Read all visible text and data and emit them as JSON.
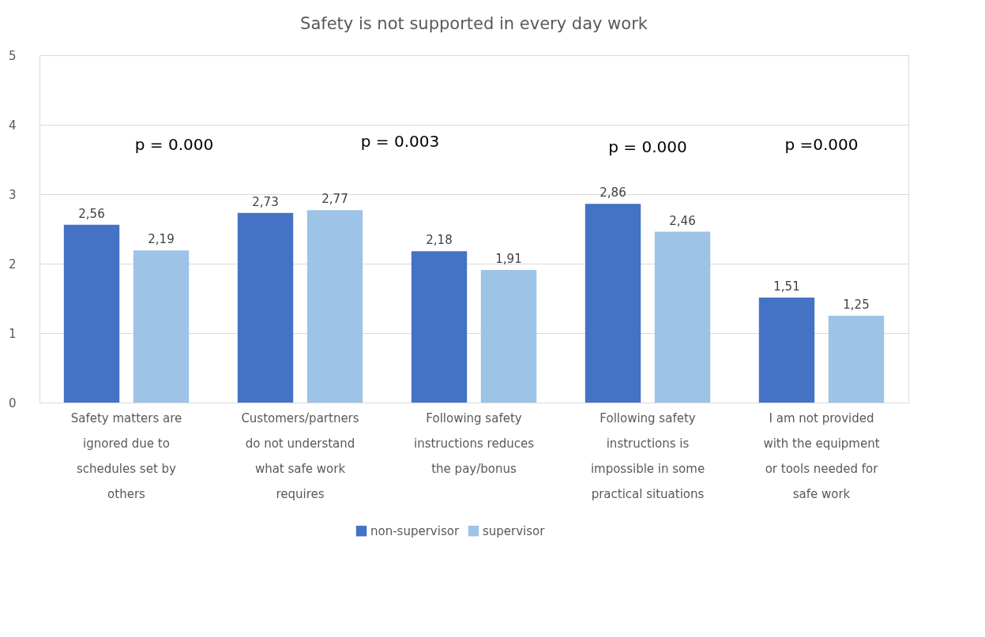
{
  "chart_data": {
    "type": "bar",
    "title": "Safety is not supported in every day work",
    "categories": [
      "Safety matters are ignored due to schedules set by others",
      "Customers/partners do not understand what safe work requires",
      "Following safety instructions reduces the pay/bonus",
      "Following safety instructions is impossible in some practical situations",
      "I am not provided with the equipment or tools needed for safe work"
    ],
    "series": [
      {
        "name": "non-supervisor",
        "color": "#4472c4",
        "values": [
          2.56,
          2.73,
          2.18,
          2.86,
          1.51
        ],
        "value_labels": [
          "2,56",
          "2,73",
          "2,18",
          "2,86",
          "1,51"
        ]
      },
      {
        "name": "supervisor",
        "color": "#9dc3e6",
        "values": [
          2.19,
          2.77,
          1.91,
          2.46,
          1.25
        ],
        "value_labels": [
          "2,19",
          "2,77",
          "1,91",
          "2,46",
          "1,25"
        ]
      }
    ],
    "annotations": [
      "p = 0.000",
      "p = 0.003",
      "p = 0.000",
      "p =0.000"
    ],
    "ylim": [
      0,
      5
    ],
    "yticks": [
      0,
      1,
      2,
      3,
      4,
      5
    ],
    "grid": "y",
    "legend": "bottom"
  }
}
